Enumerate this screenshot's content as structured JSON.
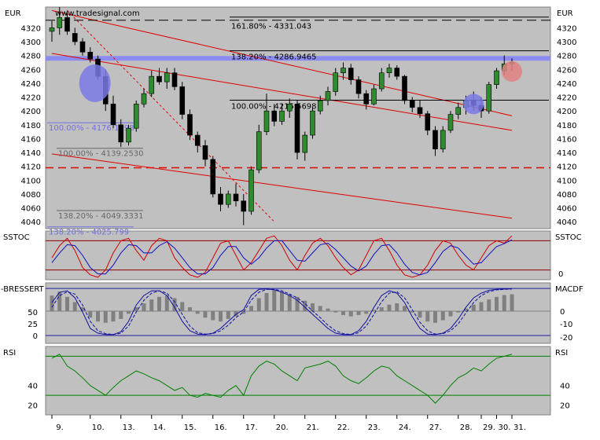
{
  "chart_data": [
    {
      "type": "candlestick",
      "panel": "price",
      "title": "",
      "watermark": "www.tradesignal.com",
      "currency_label_left": "EUR",
      "currency_label_right": "EUR",
      "ylim": [
        4030,
        4350
      ],
      "y_ticks": [
        4040,
        4060,
        4080,
        4100,
        4120,
        4140,
        4160,
        4180,
        4200,
        4220,
        4240,
        4260,
        4280,
        4300,
        4320
      ],
      "x_labels": [
        "9.",
        "10.",
        "13.",
        "14.",
        "15.",
        "16.",
        "17.",
        "20.",
        "21.",
        "22.",
        "23.",
        "24.",
        "27.",
        "28.",
        "29.",
        "30.",
        "31."
      ],
      "fib_levels": [
        {
          "text": "161.80% - 4331.043",
          "value": 4331.043,
          "style": "dashed-black",
          "color": "#000000"
        },
        {
          "text": "138.20% - 4286.9465",
          "value": 4286.9465,
          "style": "solid-black",
          "color": "#000000"
        },
        {
          "text": "100.00% - 4215.5698",
          "value": 4215.5698,
          "style": "solid-black",
          "color": "#000000"
        },
        {
          "text": "100.00% - 4176.1398",
          "value": 4176.1398,
          "style": "none",
          "color": "#7070e0"
        },
        {
          "text": "100.00% - 4139.2530",
          "value": 4139.253,
          "style": "none",
          "color": "#666666"
        },
        {
          "text": "138.20% - 4049.3331",
          "value": 4049.3331,
          "style": "none",
          "color": "#666666"
        },
        {
          "text": "138.20% - 4025.799",
          "value": 4025.799,
          "style": "none",
          "color": "#7070e0"
        }
      ],
      "horizontal_lines": [
        {
          "value": 4276,
          "color": "#8c8cf0",
          "style": "thick"
        },
        {
          "value": 4118,
          "color": "#e00000",
          "style": "dashed"
        }
      ],
      "highlight_circles": [
        {
          "x": "10.",
          "value": 4240,
          "color": "#7a7ae6"
        },
        {
          "x": "29.",
          "value": 4210,
          "color": "#7a7ae6"
        },
        {
          "x": "31.",
          "value": 4257,
          "color": "#e08080"
        }
      ],
      "trend_lines": [
        {
          "from": [
            0,
            4345
          ],
          "to": [
            60,
            4193
          ],
          "color": "#e00000",
          "style": "solid"
        },
        {
          "from": [
            0,
            4283
          ],
          "to": [
            60,
            4172
          ],
          "color": "#e00000",
          "style": "solid"
        },
        {
          "from": [
            0,
            4138
          ],
          "to": [
            60,
            4045
          ],
          "color": "#e00000",
          "style": "solid"
        },
        {
          "from": [
            2,
            4345
          ],
          "to": [
            29,
            4040
          ],
          "color": "#e00000",
          "style": "dotted"
        }
      ],
      "ohlc": [
        [
          4315,
          4330,
          4300,
          4320
        ],
        [
          4320,
          4350,
          4310,
          4335
        ],
        [
          4335,
          4345,
          4310,
          4315
        ],
        [
          4312,
          4320,
          4295,
          4300
        ],
        [
          4300,
          4305,
          4280,
          4285
        ],
        [
          4285,
          4292,
          4270,
          4275
        ],
        [
          4275,
          4280,
          4245,
          4250
        ],
        [
          4250,
          4260,
          4200,
          4210
        ],
        [
          4210,
          4222,
          4175,
          4180
        ],
        [
          4180,
          4188,
          4148,
          4155
        ],
        [
          4155,
          4180,
          4150,
          4175
        ],
        [
          4175,
          4215,
          4170,
          4210
        ],
        [
          4210,
          4232,
          4205,
          4225
        ],
        [
          4225,
          4258,
          4220,
          4250
        ],
        [
          4250,
          4262,
          4238,
          4242
        ],
        [
          4242,
          4262,
          4232,
          4255
        ],
        [
          4255,
          4262,
          4230,
          4235
        ],
        [
          4235,
          4242,
          4188,
          4195
        ],
        [
          4195,
          4202,
          4158,
          4165
        ],
        [
          4165,
          4170,
          4140,
          4150
        ],
        [
          4150,
          4158,
          4120,
          4130
        ],
        [
          4130,
          4135,
          4075,
          4080
        ],
        [
          4080,
          4090,
          4055,
          4065
        ],
        [
          4065,
          4085,
          4060,
          4080
        ],
        [
          4080,
          4095,
          4062,
          4070
        ],
        [
          4070,
          4080,
          4035,
          4055
        ],
        [
          4055,
          4120,
          4050,
          4115
        ],
        [
          4115,
          4180,
          4110,
          4170
        ],
        [
          4170,
          4225,
          4165,
          4200
        ],
        [
          4200,
          4210,
          4178,
          4185
        ],
        [
          4185,
          4210,
          4180,
          4200
        ],
        [
          4200,
          4218,
          4190,
          4210
        ],
        [
          4210,
          4215,
          4130,
          4140
        ],
        [
          4140,
          4170,
          4128,
          4165
        ],
        [
          4165,
          4205,
          4160,
          4200
        ],
        [
          4200,
          4222,
          4195,
          4215
        ],
        [
          4215,
          4235,
          4208,
          4228
        ],
        [
          4228,
          4262,
          4222,
          4255
        ],
        [
          4255,
          4270,
          4245,
          4262
        ],
        [
          4262,
          4268,
          4238,
          4245
        ],
        [
          4245,
          4250,
          4218,
          4225
        ],
        [
          4225,
          4230,
          4202,
          4210
        ],
        [
          4210,
          4238,
          4208,
          4232
        ],
        [
          4232,
          4262,
          4228,
          4255
        ],
        [
          4255,
          4268,
          4248,
          4262
        ],
        [
          4262,
          4266,
          4245,
          4250
        ],
        [
          4250,
          4252,
          4210,
          4215
        ],
        [
          4215,
          4220,
          4198,
          4205
        ],
        [
          4205,
          4215,
          4190,
          4196
        ],
        [
          4196,
          4200,
          4165,
          4172
        ],
        [
          4172,
          4178,
          4135,
          4145
        ],
        [
          4145,
          4178,
          4140,
          4172
        ],
        [
          4172,
          4200,
          4168,
          4195
        ],
        [
          4195,
          4212,
          4188,
          4205
        ],
        [
          4205,
          4222,
          4195,
          4215
        ],
        [
          4215,
          4228,
          4200,
          4208
        ],
        [
          4208,
          4220,
          4190,
          4200
        ],
        [
          4200,
          4242,
          4196,
          4238
        ],
        [
          4238,
          4262,
          4232,
          4258
        ],
        [
          4258,
          4280,
          4252,
          4268
        ],
        [
          4268,
          4276,
          4258,
          4270
        ]
      ]
    },
    {
      "type": "line",
      "panel": "SSTOC",
      "label_left": "SSTOC",
      "label_right": "SSTOC",
      "ylim": [
        0,
        100
      ],
      "right_ticks": [
        {
          "value": 0,
          "text": "0"
        }
      ],
      "levels": [
        80,
        20
      ],
      "series": [
        {
          "name": "",
          "color": "#d00000",
          "values": [
            45,
            70,
            85,
            60,
            25,
            10,
            5,
            20,
            55,
            80,
            85,
            60,
            40,
            70,
            85,
            80,
            45,
            25,
            10,
            5,
            15,
            45,
            75,
            80,
            50,
            20,
            35,
            60,
            85,
            90,
            70,
            40,
            20,
            50,
            75,
            85,
            70,
            45,
            25,
            10,
            20,
            50,
            80,
            85,
            60,
            30,
            10,
            5,
            10,
            30,
            60,
            80,
            75,
            50,
            30,
            20,
            45,
            70,
            80,
            75,
            90
          ]
        },
        {
          "name": "",
          "color": "#1010c0",
          "values": [
            35,
            55,
            72,
            70,
            50,
            25,
            12,
            12,
            30,
            55,
            72,
            70,
            55,
            55,
            70,
            78,
            65,
            45,
            25,
            12,
            12,
            25,
            50,
            68,
            68,
            45,
            32,
            45,
            65,
            80,
            80,
            60,
            40,
            38,
            55,
            72,
            75,
            62,
            45,
            28,
            18,
            28,
            52,
            70,
            72,
            55,
            32,
            15,
            10,
            15,
            35,
            58,
            70,
            65,
            48,
            32,
            35,
            52,
            68,
            74,
            82
          ]
        }
      ]
    },
    {
      "type": "bar+line",
      "panel": "BRESSERT/MACDF",
      "label_left": "-BRESSERT",
      "label_right": "MACDF",
      "left_ylim": [
        0,
        100
      ],
      "left_ticks": [
        0,
        25,
        50
      ],
      "right_ticks": [
        "0",
        "-10",
        "-20"
      ],
      "levels": [
        100,
        0
      ],
      "histogram": [
        60,
        75,
        55,
        35,
        15,
        -25,
        -40,
        -45,
        -40,
        -30,
        -10,
        15,
        30,
        45,
        55,
        60,
        50,
        35,
        15,
        -10,
        -25,
        -35,
        -40,
        -30,
        -20,
        -10,
        20,
        50,
        70,
        80,
        75,
        65,
        55,
        40,
        30,
        20,
        10,
        -5,
        -15,
        -20,
        -15,
        -10,
        5,
        15,
        25,
        30,
        20,
        -5,
        -25,
        -40,
        -45,
        -35,
        -20,
        -5,
        10,
        25,
        35,
        45,
        55,
        62,
        65
      ],
      "series": [
        {
          "name": "",
          "color": "#1010a0",
          "style": "solid",
          "values": [
            70,
            92,
            95,
            80,
            50,
            15,
            5,
            2,
            2,
            8,
            30,
            65,
            85,
            95,
            95,
            85,
            60,
            30,
            10,
            3,
            2,
            5,
            15,
            30,
            45,
            55,
            85,
            98,
            99,
            97,
            92,
            85,
            75,
            60,
            45,
            30,
            15,
            5,
            2,
            2,
            10,
            30,
            60,
            85,
            95,
            90,
            70,
            40,
            15,
            3,
            2,
            5,
            15,
            35,
            60,
            80,
            90,
            96,
            98,
            99,
            99
          ]
        },
        {
          "name": "",
          "color": "#1010a0",
          "style": "dashed",
          "values": [
            60,
            85,
            93,
            88,
            65,
            30,
            10,
            4,
            2,
            5,
            20,
            50,
            75,
            90,
            95,
            90,
            72,
            45,
            20,
            6,
            3,
            4,
            10,
            22,
            38,
            50,
            75,
            92,
            98,
            98,
            95,
            88,
            80,
            68,
            52,
            38,
            22,
            10,
            4,
            2,
            6,
            20,
            45,
            72,
            90,
            93,
            80,
            55,
            28,
            10,
            3,
            4,
            10,
            25,
            48,
            70,
            85,
            93,
            97,
            98,
            99
          ]
        }
      ]
    },
    {
      "type": "line",
      "panel": "RSI",
      "label_left": "RSI",
      "label_right": "RSI",
      "ylim": [
        10,
        80
      ],
      "left_ticks": [
        20,
        40
      ],
      "right_ticks": [
        20,
        40
      ],
      "levels": [
        70,
        30
      ],
      "series": [
        {
          "name": "",
          "color": "#008000",
          "values": [
            68,
            72,
            60,
            55,
            48,
            40,
            35,
            30,
            38,
            45,
            50,
            55,
            52,
            48,
            45,
            40,
            35,
            38,
            30,
            28,
            32,
            30,
            28,
            35,
            40,
            30,
            50,
            60,
            65,
            62,
            55,
            50,
            45,
            58,
            60,
            62,
            65,
            60,
            50,
            45,
            42,
            48,
            55,
            60,
            58,
            50,
            45,
            40,
            35,
            30,
            22,
            30,
            40,
            48,
            52,
            58,
            55,
            62,
            68,
            70,
            72
          ]
        }
      ]
    }
  ]
}
